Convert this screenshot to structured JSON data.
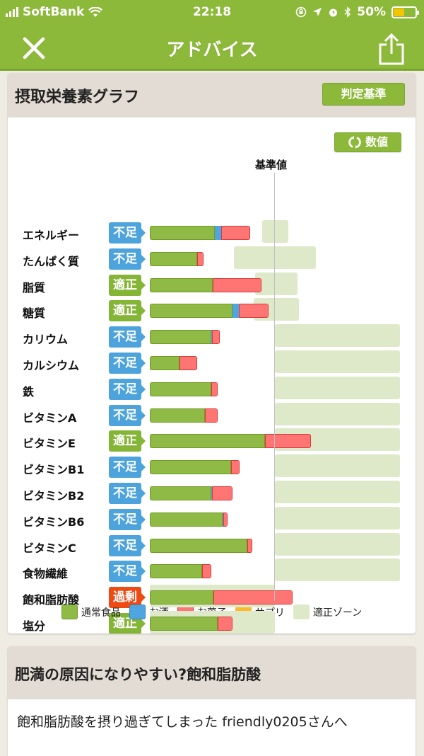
{
  "status_bar": {
    "carrier": "SoftBank",
    "time": "22:18",
    "battery": "50%"
  },
  "nav": {
    "title": "アドバイス",
    "close_icon": "close-icon",
    "share_icon": "share-icon"
  },
  "graph_card": {
    "title": "摂取栄養素グラフ",
    "judge_button": "判定基準",
    "number_button": "数値",
    "baseline_label": "基準値"
  },
  "colors": {
    "food": "#8fba45",
    "alcohol": "#4ea5df",
    "sweets": "#fe7574",
    "supplement": "#fbb92b",
    "zone": "#dde9c8",
    "badge_short": "#4da3dc",
    "badge_ok": "#84b536",
    "badge_over": "#ee4a14"
  },
  "legend": [
    {
      "label": "通常食品",
      "color": "#8fba45"
    },
    {
      "label": "お酒",
      "color": "#4ea5df"
    },
    {
      "label": "お菓子",
      "color": "#fe7574"
    },
    {
      "label": "サプリ",
      "color": "#fbb92b"
    },
    {
      "label": "適正ゾーン",
      "color": "#dde9c8"
    }
  ],
  "chart_data": {
    "type": "bar",
    "title": "摂取栄養素グラフ",
    "xlabel": "",
    "ylabel": "",
    "reference_label": "基準値",
    "reference_value": 100,
    "unit": "% of 基準値 (estimated)",
    "categories": [
      "エネルギー",
      "たんぱく質",
      "脂質",
      "糖質",
      "カリウム",
      "カルシウム",
      "鉄",
      "ビタミンA",
      "ビタミンE",
      "ビタミンB1",
      "ビタミンB2",
      "ビタミンB6",
      "ビタミンC",
      "食物繊維",
      "飽和脂肪酸",
      "塩分"
    ],
    "status": [
      "不足",
      "不足",
      "適正",
      "適正",
      "不足",
      "不足",
      "不足",
      "不足",
      "適正",
      "不足",
      "不足",
      "不足",
      "不足",
      "不足",
      "過剰",
      "適正"
    ],
    "series": [
      {
        "name": "通常食品",
        "values": [
          52,
          38,
          50,
          66,
          49,
          24,
          49,
          44,
          92,
          65,
          49,
          58,
          78,
          42,
          51,
          54
        ]
      },
      {
        "name": "お酒",
        "values": [
          5,
          0,
          0,
          5,
          1,
          0,
          0,
          0,
          0,
          0,
          1,
          1,
          0,
          0,
          0,
          0
        ]
      },
      {
        "name": "お菓子",
        "values": [
          23,
          5,
          39,
          24,
          6,
          14,
          5,
          10,
          37,
          7,
          16,
          3,
          4,
          7,
          63,
          12
        ]
      },
      {
        "name": "サプリ",
        "values": [
          0,
          0,
          0,
          0,
          0,
          0,
          0,
          0,
          0,
          0,
          0,
          0,
          0,
          0,
          0,
          0
        ]
      }
    ],
    "appropriate_zone": [
      [
        90,
        111
      ],
      [
        67,
        133
      ],
      [
        84,
        118
      ],
      [
        83,
        119
      ],
      [
        100,
        200
      ],
      [
        100,
        200
      ],
      [
        100,
        200
      ],
      [
        100,
        200
      ],
      [
        100,
        200
      ],
      [
        100,
        200
      ],
      [
        100,
        200
      ],
      [
        100,
        200
      ],
      [
        100,
        200
      ],
      [
        100,
        200
      ],
      [
        0,
        100
      ],
      [
        0,
        100
      ]
    ],
    "legend_position": "bottom",
    "grid": false
  },
  "article": {
    "title": "肥満の原因になりやすい?飽和脂肪酸",
    "body": "飽和脂肪酸を摂り過ぎてしまった friendly0205さんへ"
  }
}
